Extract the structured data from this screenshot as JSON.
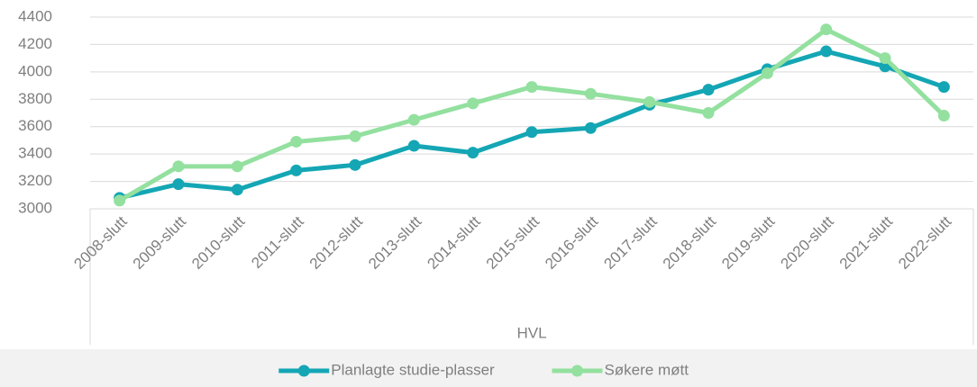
{
  "chart_data": {
    "type": "line",
    "xlabel": "HVL",
    "categories": [
      "2008-slutt",
      "2009-slutt",
      "2010-slutt",
      "2011-slutt",
      "2012-slutt",
      "2013-slutt",
      "2014-slutt",
      "2015-slutt",
      "2016-slutt",
      "2017-slutt",
      "2018-slutt",
      "2019-slutt",
      "2020-slutt",
      "2021-slutt",
      "2022-slutt"
    ],
    "series": [
      {
        "name": "Planlagte studie-plasser",
        "color": "#14a6b4",
        "values": [
          3080,
          3180,
          3140,
          3280,
          3320,
          3460,
          3410,
          3560,
          3590,
          3760,
          3870,
          4020,
          4150,
          4040,
          3890
        ]
      },
      {
        "name": "Søkere møtt",
        "color": "#93e09f",
        "values": [
          3060,
          3310,
          3310,
          3490,
          3530,
          3650,
          3770,
          3890,
          3840,
          3780,
          3700,
          3990,
          4310,
          4100,
          3680
        ]
      }
    ],
    "ylim": [
      3000,
      4400
    ],
    "yticks": [
      3000,
      3200,
      3400,
      3600,
      3800,
      4000,
      4200,
      4400
    ],
    "grid": true,
    "legend": "bottom"
  }
}
